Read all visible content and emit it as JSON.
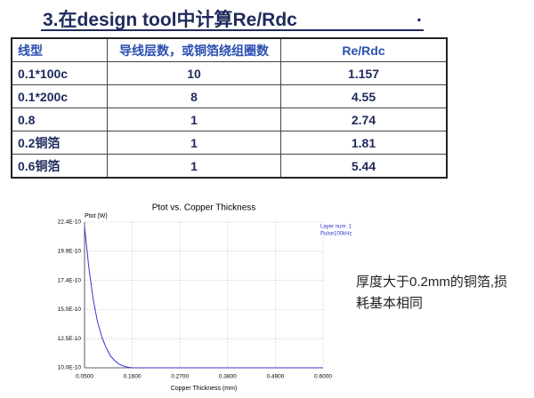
{
  "header": {
    "title": "3.在design tool中计算Re/Rdc",
    "title_suffix": "."
  },
  "table": {
    "columns": [
      "线型",
      "导线层数，或铜箔绕组圈数",
      "Re/Rdc"
    ],
    "rows": [
      [
        "0.1*100c",
        "10",
        "1.157"
      ],
      [
        "0.1*200c",
        "8",
        "4.55"
      ],
      [
        "0.8",
        "1",
        "2.74"
      ],
      [
        "0.2铜箔",
        "1",
        "1.81"
      ],
      [
        "0.6铜箔",
        "1",
        "5.44"
      ]
    ]
  },
  "chart_data": {
    "type": "line",
    "title": "Ptot vs. Copper Thickness",
    "y_label": "Ptot (W)",
    "x_label": "Copper Thickness (mm)",
    "legend_lines": [
      "Layer num: 1",
      "Pulse100kHz"
    ],
    "x": [
      0.05,
      0.06,
      0.07,
      0.08,
      0.09,
      0.1,
      0.11,
      0.12,
      0.13,
      0.14,
      0.15,
      0.16,
      0.2,
      0.3,
      0.4,
      0.5,
      0.6
    ],
    "series": [
      {
        "name": "Ptot",
        "color": "#3535c8",
        "values": [
          2.2e-09,
          1.85e-09,
          1.58e-09,
          1.39e-09,
          1.26e-09,
          1.17e-09,
          1.1e-09,
          1.06e-09,
          1.03e-09,
          1.015e-09,
          1.005e-09,
          1e-09,
          1e-09,
          1e-09,
          1e-09,
          1e-09,
          1e-09
        ]
      }
    ],
    "xlim": [
      0.05,
      0.6
    ],
    "ylim": [
      1e-09,
      2.24e-09
    ],
    "xticks": [
      {
        "value": 0.05,
        "label": "0.0500"
      },
      {
        "value": 0.16,
        "label": "0.1600"
      },
      {
        "value": 0.27,
        "label": "0.2700"
      },
      {
        "value": 0.38,
        "label": "0.3800"
      },
      {
        "value": 0.49,
        "label": "0.4900"
      },
      {
        "value": 0.6,
        "label": "0.6000"
      }
    ],
    "yticks": [
      {
        "value": 1e-09,
        "label": "10.0E-10"
      },
      {
        "value": 1.248e-09,
        "label": "12.5E-10"
      },
      {
        "value": 1.496e-09,
        "label": "15.0E-10"
      },
      {
        "value": 1.744e-09,
        "label": "17.4E-10"
      },
      {
        "value": 1.992e-09,
        "label": "19.9E-10"
      },
      {
        "value": 2.24e-09,
        "label": "22.4E-10"
      }
    ],
    "grid": true
  },
  "note": "厚度大于0.2mm的铜箔,损耗基本相同"
}
